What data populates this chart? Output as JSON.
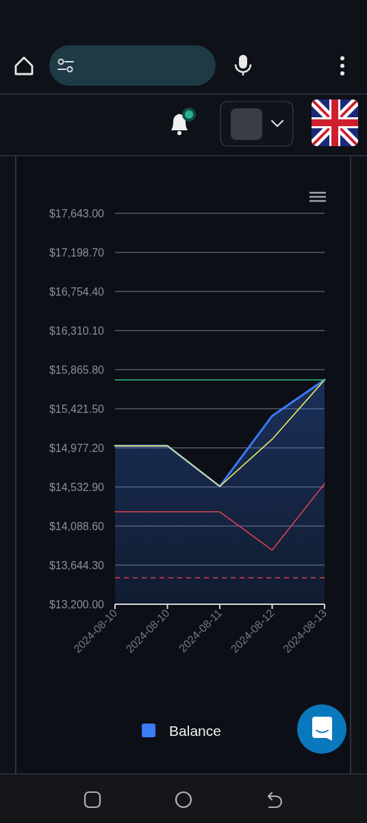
{
  "chart_data": {
    "type": "line",
    "categories": [
      "2024-08-10",
      "2024-08-10",
      "2024-08-11",
      "2024-08-12",
      "2024-08-13"
    ],
    "series": [
      {
        "name": "Balance",
        "type": "area",
        "color": "#3b7bf6",
        "values": [
          15000,
          15000,
          14540,
          15340,
          15750
        ]
      },
      {
        "color": "#ecec5e",
        "values": [
          15000,
          15000,
          14540,
          15075,
          15750
        ]
      },
      {
        "color": "#e0424e",
        "values": [
          14250,
          14250,
          14250,
          13815,
          14570
        ]
      }
    ],
    "ylim": [
      13200,
      17643
    ],
    "yticks": [
      {
        "value": 13200,
        "label": "$13,200.00"
      },
      {
        "value": 13644.3,
        "label": "$13,644.30"
      },
      {
        "value": 14088.6,
        "label": "$14,088.60"
      },
      {
        "value": 14532.9,
        "label": "$14,532.90"
      },
      {
        "value": 14977.2,
        "label": "$14,977.20"
      },
      {
        "value": 15421.5,
        "label": "$15,421.50"
      },
      {
        "value": 15865.8,
        "label": "$15,865.80"
      },
      {
        "value": 16310.1,
        "label": "$16,310.10"
      },
      {
        "value": 16754.4,
        "label": "$16,754.40"
      },
      {
        "value": 17198.7,
        "label": "$17,198.70"
      },
      {
        "value": 17643,
        "label": "$17,643.00"
      }
    ],
    "ref_lines": [
      {
        "axis": "y",
        "value": 15750,
        "color": "#2fa37c"
      },
      {
        "axis": "y",
        "value": 13500,
        "color": "#e0424e",
        "line_style": "dashed"
      }
    ],
    "grid": "y",
    "legend": "bottom"
  }
}
